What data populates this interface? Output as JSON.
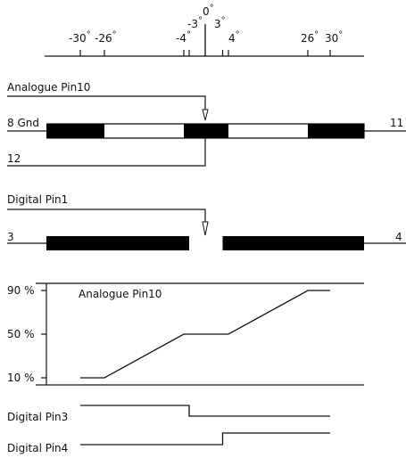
{
  "colors": {
    "ink": "#111111",
    "bar": "#000000",
    "background": "#ffffff"
  },
  "angle_scale": {
    "degree_sign": "°",
    "labels": [
      {
        "text": "-30",
        "value": -30
      },
      {
        "text": "-26",
        "value": -26
      },
      {
        "text": "-4",
        "value": -4
      },
      {
        "text": "-3",
        "value": -3
      },
      {
        "text": "0",
        "value": 0
      },
      {
        "text": "3",
        "value": 3
      },
      {
        "text": "4",
        "value": 4
      },
      {
        "text": "26",
        "value": 26
      },
      {
        "text": "30",
        "value": 30
      }
    ]
  },
  "analogue_section": {
    "title": "Analogue Pin10",
    "left_label": "8 Gnd",
    "right_label": "11",
    "bottom_label": "12",
    "segments_black": [
      [
        -30,
        -26
      ],
      [
        -4,
        4
      ],
      [
        26,
        30
      ]
    ]
  },
  "digital_section": {
    "title": "Digital Pin1",
    "left_label": "3",
    "right_label": "4",
    "gap": [
      -3,
      3
    ]
  },
  "graph": {
    "title": "Analogue Pin10",
    "y_labels": [
      "90 %",
      "50 %",
      "10 %"
    ],
    "y_values": [
      90,
      50,
      10
    ],
    "curve": [
      {
        "angle": -26,
        "percent": 10
      },
      {
        "angle": -4,
        "percent": 50
      },
      {
        "angle": 4,
        "percent": 50
      },
      {
        "angle": 26,
        "percent": 90
      }
    ]
  },
  "digital_pins": [
    {
      "label": "Digital Pin3",
      "switch_angle": -3,
      "high_before": true
    },
    {
      "label": "Digital Pin4",
      "switch_angle": 3,
      "high_before": false
    }
  ]
}
